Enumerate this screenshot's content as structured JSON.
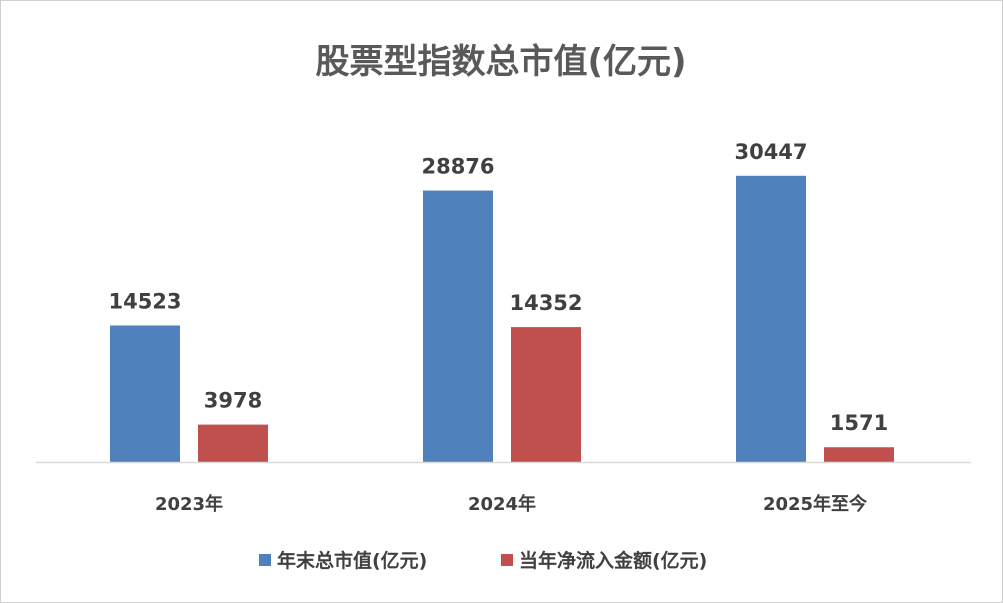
{
  "chart_data": {
    "type": "bar",
    "title": "股票型指数总市值(亿元)",
    "categories": [
      "2023年",
      "2024年",
      "2025年至今"
    ],
    "series": [
      {
        "name": "年末总市值(亿元)",
        "values": [
          14523,
          28876,
          30447
        ],
        "color": "#4f81bd"
      },
      {
        "name": "当年净流入金额(亿元)",
        "values": [
          3978,
          14352,
          1571
        ],
        "color": "#c0504d"
      }
    ],
    "xlabel": "",
    "ylabel": "",
    "ylim": [
      0,
      35000
    ],
    "grid": false,
    "legend_position": "bottom",
    "axis_color": "#d9d9d9"
  }
}
